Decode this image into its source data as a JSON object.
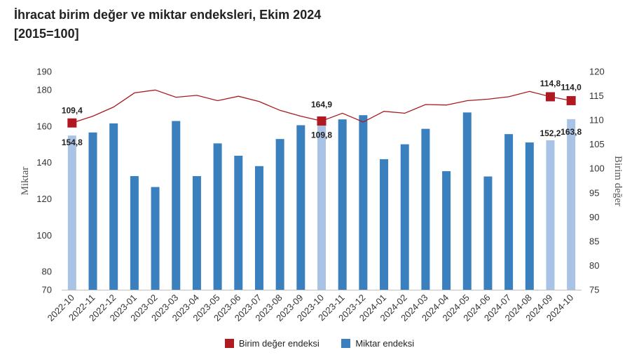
{
  "header": {
    "title": "İhracat birim değer ve miktar endeksleri, Ekim 2024",
    "subtitle": "[2015=100]"
  },
  "legend": {
    "line_label": "Birim değer endeksi",
    "bar_label": "Miktar endeksi"
  },
  "colors": {
    "bar": "#3a80bf",
    "bar_highlight": "#a8c3e6",
    "line": "#a61c22",
    "marker": "#b0191f"
  },
  "chart_data": {
    "type": "bar+line",
    "categories": [
      "2022-10",
      "2022-11",
      "2022-12",
      "2023-01",
      "2023-02",
      "2023-03",
      "2023-04",
      "2023-05",
      "2023-06",
      "2023-07",
      "2023-08",
      "2023-09",
      "2023-10",
      "2023-11",
      "2023-12",
      "2024-01",
      "2024-02",
      "2024-03",
      "2024-04",
      "2024-05",
      "2024-06",
      "2024-07",
      "2024-08",
      "2024-09",
      "2024-10"
    ],
    "series": [
      {
        "name": "Miktar endeksi",
        "type": "bar",
        "axis": "left",
        "values": [
          154.8,
          156.5,
          161.5,
          132.5,
          126.5,
          162.8,
          132.5,
          150.5,
          143.7,
          138.0,
          152.9,
          160.5,
          164.9,
          163.7,
          166.0,
          141.8,
          150.0,
          158.5,
          135.2,
          167.5,
          132.3,
          155.6,
          151.0,
          152.2,
          163.8
        ],
        "highlighted": [
          0,
          12,
          23,
          24
        ]
      },
      {
        "name": "Birim değer endeksi",
        "type": "line",
        "axis": "right",
        "values": [
          109.4,
          110.8,
          112.7,
          115.6,
          116.2,
          114.7,
          115.1,
          114.0,
          114.9,
          113.8,
          112.0,
          110.8,
          109.8,
          111.4,
          109.6,
          111.8,
          111.4,
          113.2,
          113.1,
          114.0,
          114.3,
          114.8,
          115.9,
          114.8,
          114.0
        ],
        "markers": [
          0,
          12,
          23,
          24
        ]
      }
    ],
    "data_labels": {
      "bars": [
        {
          "index": 0,
          "text": "154,8"
        },
        {
          "index": 12,
          "text": "164,9"
        },
        {
          "index": 23,
          "text": "152,2"
        },
        {
          "index": 24,
          "text": "163,8"
        }
      ],
      "line": [
        {
          "index": 0,
          "text": "109,4"
        },
        {
          "index": 12,
          "text": "109,8"
        },
        {
          "index": 23,
          "text": "114,8"
        },
        {
          "index": 24,
          "text": "114,0"
        }
      ]
    },
    "left_axis": {
      "label": "Miktar",
      "ylim": [
        70,
        190
      ],
      "ticks": [
        70,
        80,
        100,
        120,
        140,
        160,
        180,
        190
      ]
    },
    "right_axis": {
      "label": "Birim değer",
      "ylim": [
        75,
        120
      ],
      "ticks": [
        75,
        80,
        85,
        90,
        95,
        100,
        105,
        110,
        115,
        120
      ]
    },
    "grid": false,
    "legend_position": "bottom"
  }
}
